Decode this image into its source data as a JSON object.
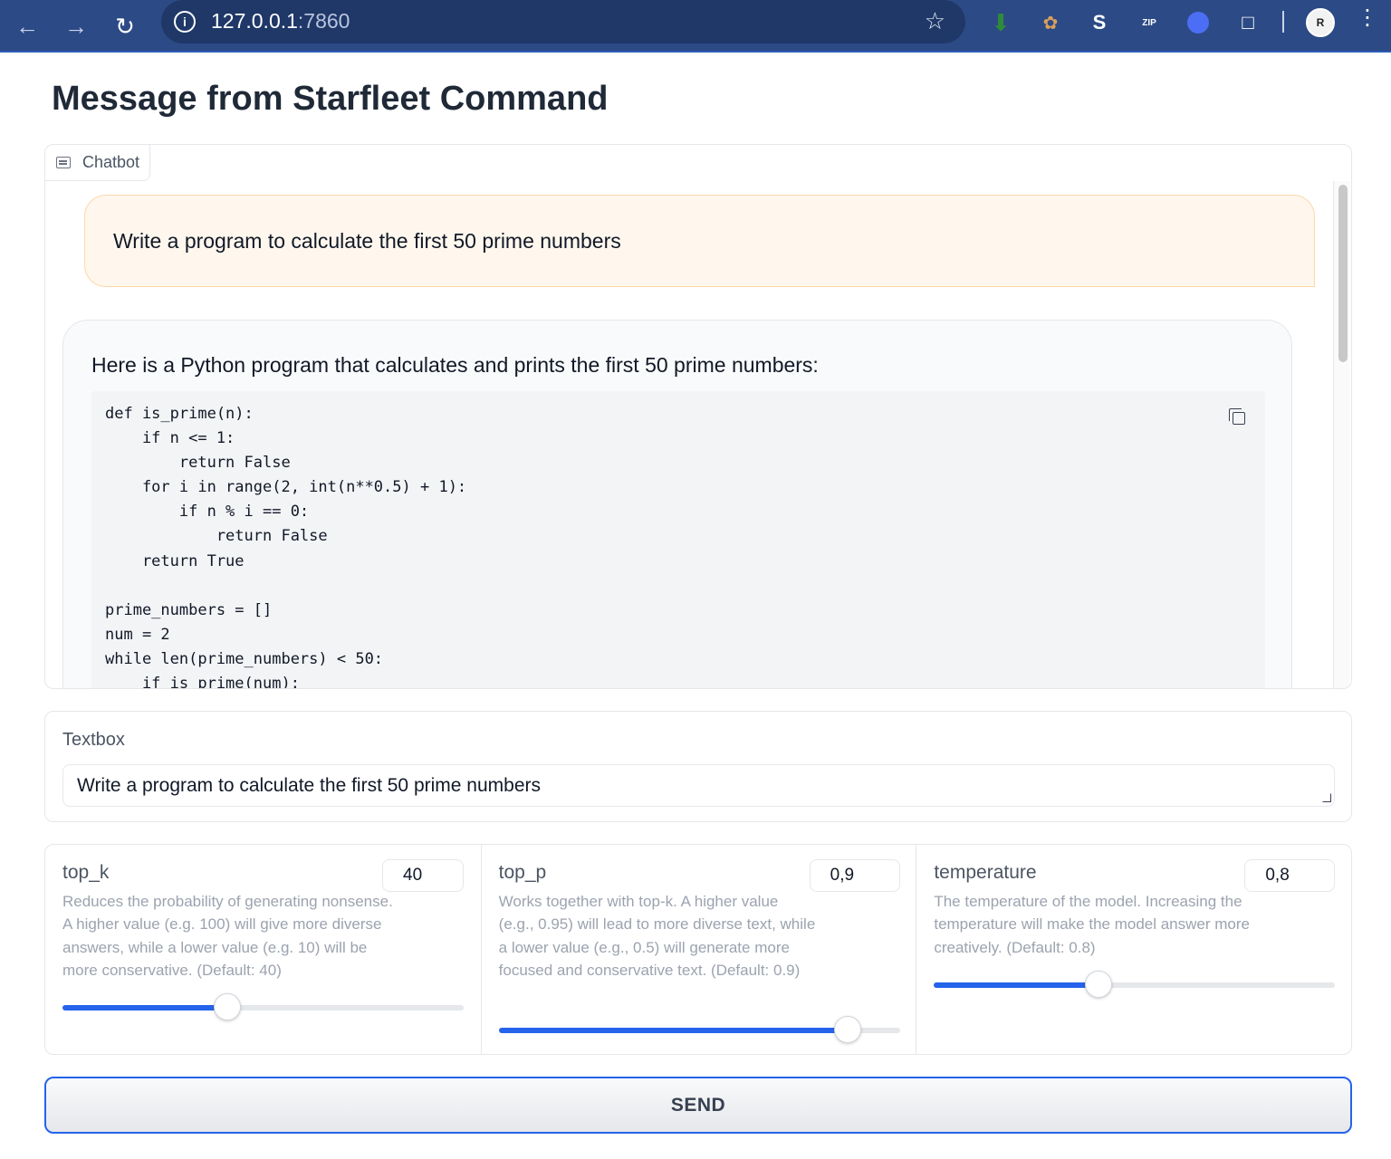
{
  "browser": {
    "url_host": "127.0.0.1",
    "url_port": ":7860",
    "profile_initial": "R"
  },
  "page": {
    "title": "Message from Starfleet Command"
  },
  "chatbot": {
    "label": "Chatbot",
    "user_message": "Write a program to calculate the first 50 prime numbers",
    "bot_intro": "Here is a Python program that calculates and prints the first 50 prime numbers:",
    "code_lines": [
      "def is_prime(n):",
      "    if n <= 1:",
      "        return False",
      "    for i in range(2, int(n**0.5) + 1):",
      "        if n % i == 0:",
      "            return False",
      "    return True",
      "",
      "prime_numbers = []",
      "num = 2",
      "while len(prime_numbers) < 50:",
      "    if is_prime(num):"
    ]
  },
  "textbox": {
    "label": "Textbox",
    "value": "Write a program to calculate the first 50 prime numbers"
  },
  "params": [
    {
      "label": "top_k",
      "value": "40",
      "description": "Reduces the probability of generating nonsense. A higher value (e.g. 100) will give more diverse answers, while a lower value (e.g. 10) will be more conservative. (Default: 40)",
      "slider_fraction": 0.41
    },
    {
      "label": "top_p",
      "value": "0,9",
      "description": "Works together with top-k. A higher value (e.g., 0.95) will lead to more diverse text, while a lower value (e.g., 0.5) will generate more focused and conservative text. (Default: 0.9)",
      "slider_fraction": 0.87
    },
    {
      "label": "temperature",
      "value": "0,8",
      "description": "The temperature of the model. Increasing the temperature will make the model answer more creatively. (Default: 0.8)",
      "slider_fraction": 0.41
    }
  ],
  "send_label": "SEND",
  "colors": {
    "accent": "#2563eb",
    "user_bubble_bg": "#fff7ed",
    "user_bubble_border": "#fed7aa",
    "browser_bar": "#2c4a85"
  }
}
